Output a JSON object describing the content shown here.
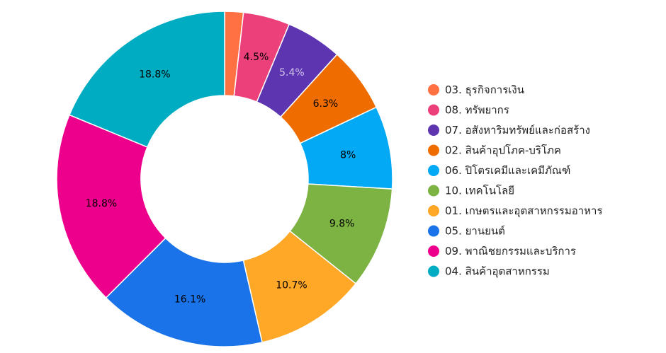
{
  "chart_data": {
    "type": "pie",
    "donut": true,
    "legend_position": "right",
    "categories": [
      "03. ธุรกิจการเงิน",
      "08. ทรัพยากร",
      "07. อสังหาริมทรัพย์และก่อสร้าง",
      "02. สินค้าอุปโภค-บริโภค",
      "06. ปิโตรเคมีและเคมีภัณฑ์",
      "10. เทคโนโลยี",
      "01. เกษตรและอุตสาหกรรมอาหาร",
      "05. ยานยนต์",
      "09. พาณิชยกรรมและบริการ",
      "04. สินค้าอุตสาหกรรม"
    ],
    "values": [
      1.8,
      4.5,
      5.4,
      6.3,
      8.0,
      9.8,
      10.7,
      16.1,
      18.8,
      18.8
    ],
    "labels": [
      "",
      "4.5%",
      "5.4%",
      "6.3%",
      "8%",
      "9.8%",
      "10.7%",
      "16.1%",
      "18.8%",
      "18.8%"
    ],
    "colors": [
      "#ff7043",
      "#ec407a",
      "#5e35b1",
      "#ef6c00",
      "#03a9f4",
      "#7cb342",
      "#ffa726",
      "#1a73e8",
      "#ec008c",
      "#00acc1"
    ],
    "label_colors": [
      "#000000",
      "#000000",
      "#d1c4e9",
      "#000000",
      "#000000",
      "#000000",
      "#000000",
      "#000000",
      "#000000",
      "#000000"
    ]
  }
}
